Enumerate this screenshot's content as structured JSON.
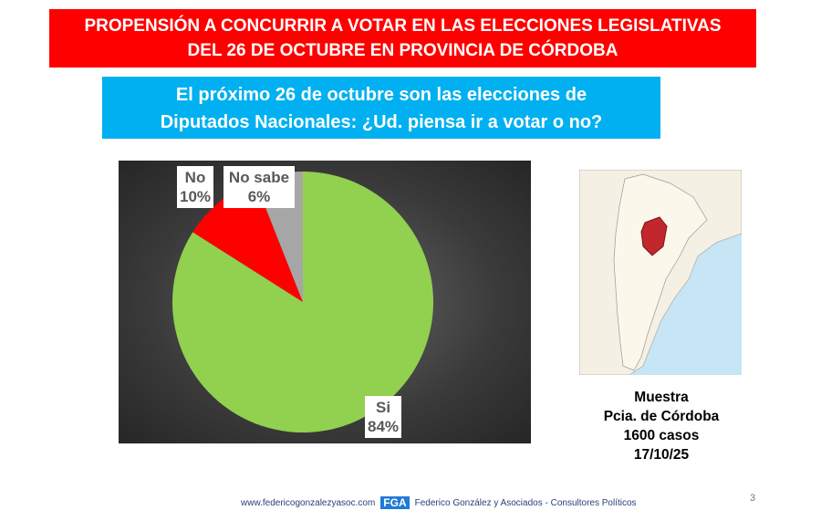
{
  "header": {
    "title_line1": "PROPENSIÓN A CONCURRIR A VOTAR EN LAS ELECCIONES LEGISLATIVAS",
    "title_line2": "DEL 26 DE OCTUBRE EN PROVINCIA DE CÓRDOBA"
  },
  "question": {
    "line1": "El próximo 26 de octubre son las elecciones de",
    "line2": "Diputados Nacionales: ¿Ud. piensa ir a votar o no?"
  },
  "chart_data": {
    "type": "pie",
    "categories": [
      "Si",
      "No",
      "No sabe"
    ],
    "values": [
      84,
      10,
      6
    ],
    "labels": [
      "84%",
      "10%",
      "6%"
    ],
    "colors": [
      "#92d050",
      "#ff0000",
      "#a6a6a6"
    ]
  },
  "sample": {
    "l1": "Muestra",
    "l2": "Pcia. de Córdoba",
    "l3": "1600 casos",
    "l4": "17/10/25"
  },
  "footer": {
    "website": "www.federicogonzalezyasoc.com",
    "logo": "FGA",
    "company": "Federico González y Asociados - Consultores Políticos",
    "page": "3"
  }
}
